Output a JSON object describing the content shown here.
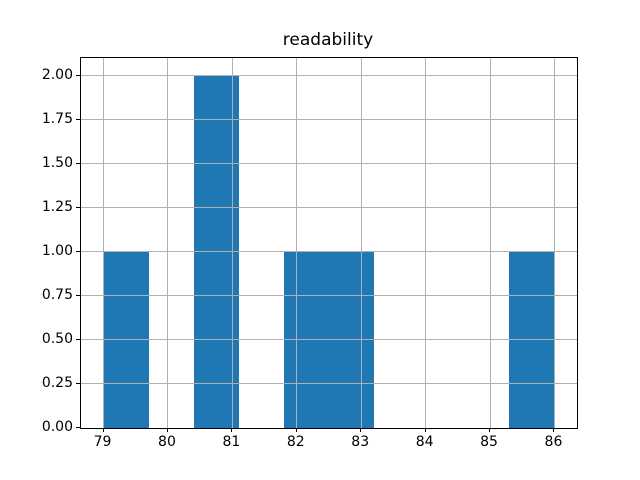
{
  "chart_data": {
    "type": "bar",
    "subtype": "histogram",
    "title": "readability",
    "xlabel": "",
    "ylabel": "",
    "bin_edges": [
      79.0,
      79.7,
      80.4,
      81.1,
      81.8,
      82.5,
      83.2,
      83.9,
      84.6,
      85.3,
      86.0
    ],
    "counts": [
      1,
      0,
      2,
      0,
      1,
      1,
      0,
      0,
      0,
      1
    ],
    "x_ticks": [
      {
        "v": 79,
        "label": "79"
      },
      {
        "v": 80,
        "label": "80"
      },
      {
        "v": 81,
        "label": "81"
      },
      {
        "v": 82,
        "label": "82"
      },
      {
        "v": 83,
        "label": "83"
      },
      {
        "v": 84,
        "label": "84"
      },
      {
        "v": 85,
        "label": "85"
      },
      {
        "v": 86,
        "label": "86"
      }
    ],
    "y_ticks": [
      {
        "v": 0.0,
        "label": "0.00"
      },
      {
        "v": 0.25,
        "label": "0.25"
      },
      {
        "v": 0.5,
        "label": "0.50"
      },
      {
        "v": 0.75,
        "label": "0.75"
      },
      {
        "v": 1.0,
        "label": "1.00"
      },
      {
        "v": 1.25,
        "label": "1.25"
      },
      {
        "v": 1.5,
        "label": "1.50"
      },
      {
        "v": 1.75,
        "label": "1.75"
      },
      {
        "v": 2.0,
        "label": "2.00"
      }
    ],
    "xlim": [
      78.65,
      86.35
    ],
    "ylim": [
      0,
      2.1
    ],
    "grid": true,
    "grid_over_bars": true,
    "legend": "none",
    "bar_color": "#1f77b4",
    "grid_color": "#b0b0b0",
    "axis_color": "#000000",
    "background_color": "#ffffff"
  }
}
